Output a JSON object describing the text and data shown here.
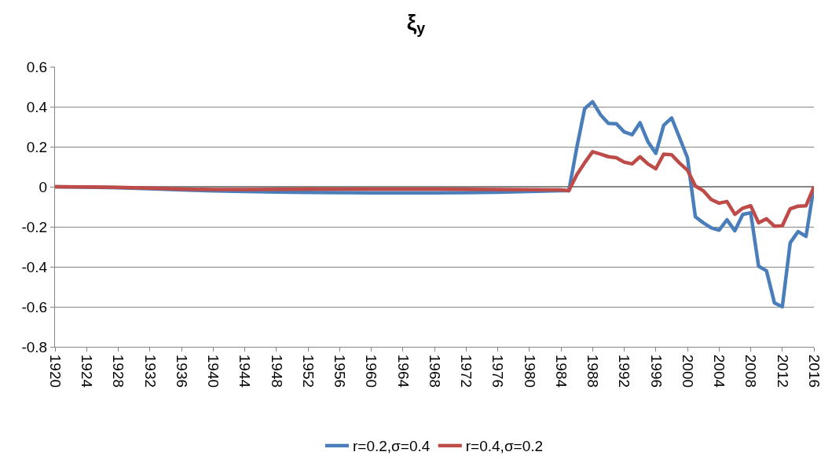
{
  "chart_data": {
    "type": "line",
    "title": "ξ$_{y}$",
    "xlim": [
      1920,
      2016
    ],
    "xticks": [
      1920,
      1924,
      1928,
      1932,
      1936,
      1940,
      1944,
      1948,
      1952,
      1956,
      1960,
      1964,
      1968,
      1972,
      1976,
      1980,
      1984,
      1988,
      1992,
      1996,
      2000,
      2004,
      2008,
      2012,
      2016
    ],
    "ylim": [
      -0.8,
      0.6
    ],
    "yticks": [
      {
        "value": -0.8,
        "label": "-0.8"
      },
      {
        "value": -0.6,
        "label": "-0.6"
      },
      {
        "value": -0.4,
        "label": "-0.4"
      },
      {
        "value": -0.2,
        "label": "-0.2"
      },
      {
        "value": 0,
        "label": "0"
      },
      {
        "value": 0.2,
        "label": "0.2"
      },
      {
        "value": 0.4,
        "label": "0.4"
      },
      {
        "value": 0.6,
        "label": "0.6"
      }
    ],
    "grid": "y",
    "legend": "bottom",
    "marker": "none",
    "line_style": "solid",
    "x": [
      1920,
      1924,
      1928,
      1932,
      1936,
      1940,
      1944,
      1948,
      1952,
      1956,
      1960,
      1964,
      1968,
      1972,
      1976,
      1980,
      1984,
      1985,
      1986,
      1987,
      1988,
      1989,
      1990,
      1991,
      1992,
      1993,
      1994,
      1995,
      1996,
      1997,
      1998,
      1999,
      2000,
      2001,
      2002,
      2003,
      2004,
      2005,
      2006,
      2007,
      2008,
      2009,
      2010,
      2011,
      2012,
      2013,
      2014,
      2015,
      2016
    ],
    "series": [
      {
        "name": "r=0.2,σ=0.4",
        "color": "#4a7ebb",
        "values": [
          0,
          -0.002,
          -0.005,
          -0.01,
          -0.016,
          -0.021,
          -0.024,
          -0.026,
          -0.028,
          -0.029,
          -0.03,
          -0.03,
          -0.03,
          -0.029,
          -0.027,
          -0.024,
          -0.02,
          -0.02,
          0.195,
          0.39,
          0.425,
          0.36,
          0.317,
          0.315,
          0.274,
          0.26,
          0.32,
          0.225,
          0.167,
          0.307,
          0.344,
          0.245,
          0.145,
          -0.15,
          -0.18,
          -0.205,
          -0.217,
          -0.165,
          -0.22,
          -0.138,
          -0.13,
          -0.397,
          -0.42,
          -0.58,
          -0.6,
          -0.28,
          -0.224,
          -0.248,
          0
        ]
      },
      {
        "name": "r=0.4,σ=0.2",
        "color": "#be4b48",
        "values": [
          0,
          -0.001,
          -0.003,
          -0.007,
          -0.012,
          -0.014,
          -0.014,
          -0.013,
          -0.012,
          -0.012,
          -0.012,
          -0.012,
          -0.012,
          -0.013,
          -0.014,
          -0.015,
          -0.016,
          -0.02,
          0.06,
          0.12,
          0.175,
          0.163,
          0.15,
          0.145,
          0.123,
          0.114,
          0.15,
          0.114,
          0.09,
          0.163,
          0.16,
          0.118,
          0.083,
          0.004,
          -0.02,
          -0.064,
          -0.082,
          -0.074,
          -0.138,
          -0.107,
          -0.095,
          -0.18,
          -0.16,
          -0.197,
          -0.195,
          -0.11,
          -0.097,
          -0.095,
          0
        ]
      }
    ]
  }
}
